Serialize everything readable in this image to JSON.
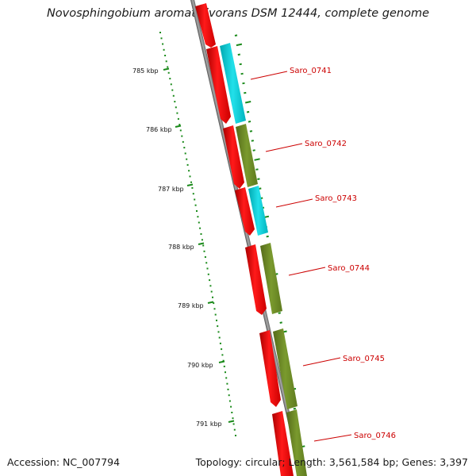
{
  "title": "Novosphingobium aromaticivorans DSM 12444, complete genome",
  "footer": {
    "accession": "Accession: NC_007794",
    "summary": "Topology: circular; Length: 3,561,584 bp; Genes: 3,397"
  },
  "ticks": [
    "785 kbp",
    "786 kbp",
    "787 kbp",
    "788 kbp",
    "789 kbp",
    "790 kbp",
    "791 kbp"
  ],
  "genes": [
    "Saro_0741",
    "Saro_0742",
    "Saro_0743",
    "Saro_0744",
    "Saro_0745",
    "Saro_0746"
  ],
  "colors": {
    "cds": "#ff0000",
    "cog_cyan": "#00c8d2",
    "cog_olive": "#6b8e23",
    "tick": "#1a8a1a",
    "backbone": "#888888",
    "label": "#cc0000"
  }
}
